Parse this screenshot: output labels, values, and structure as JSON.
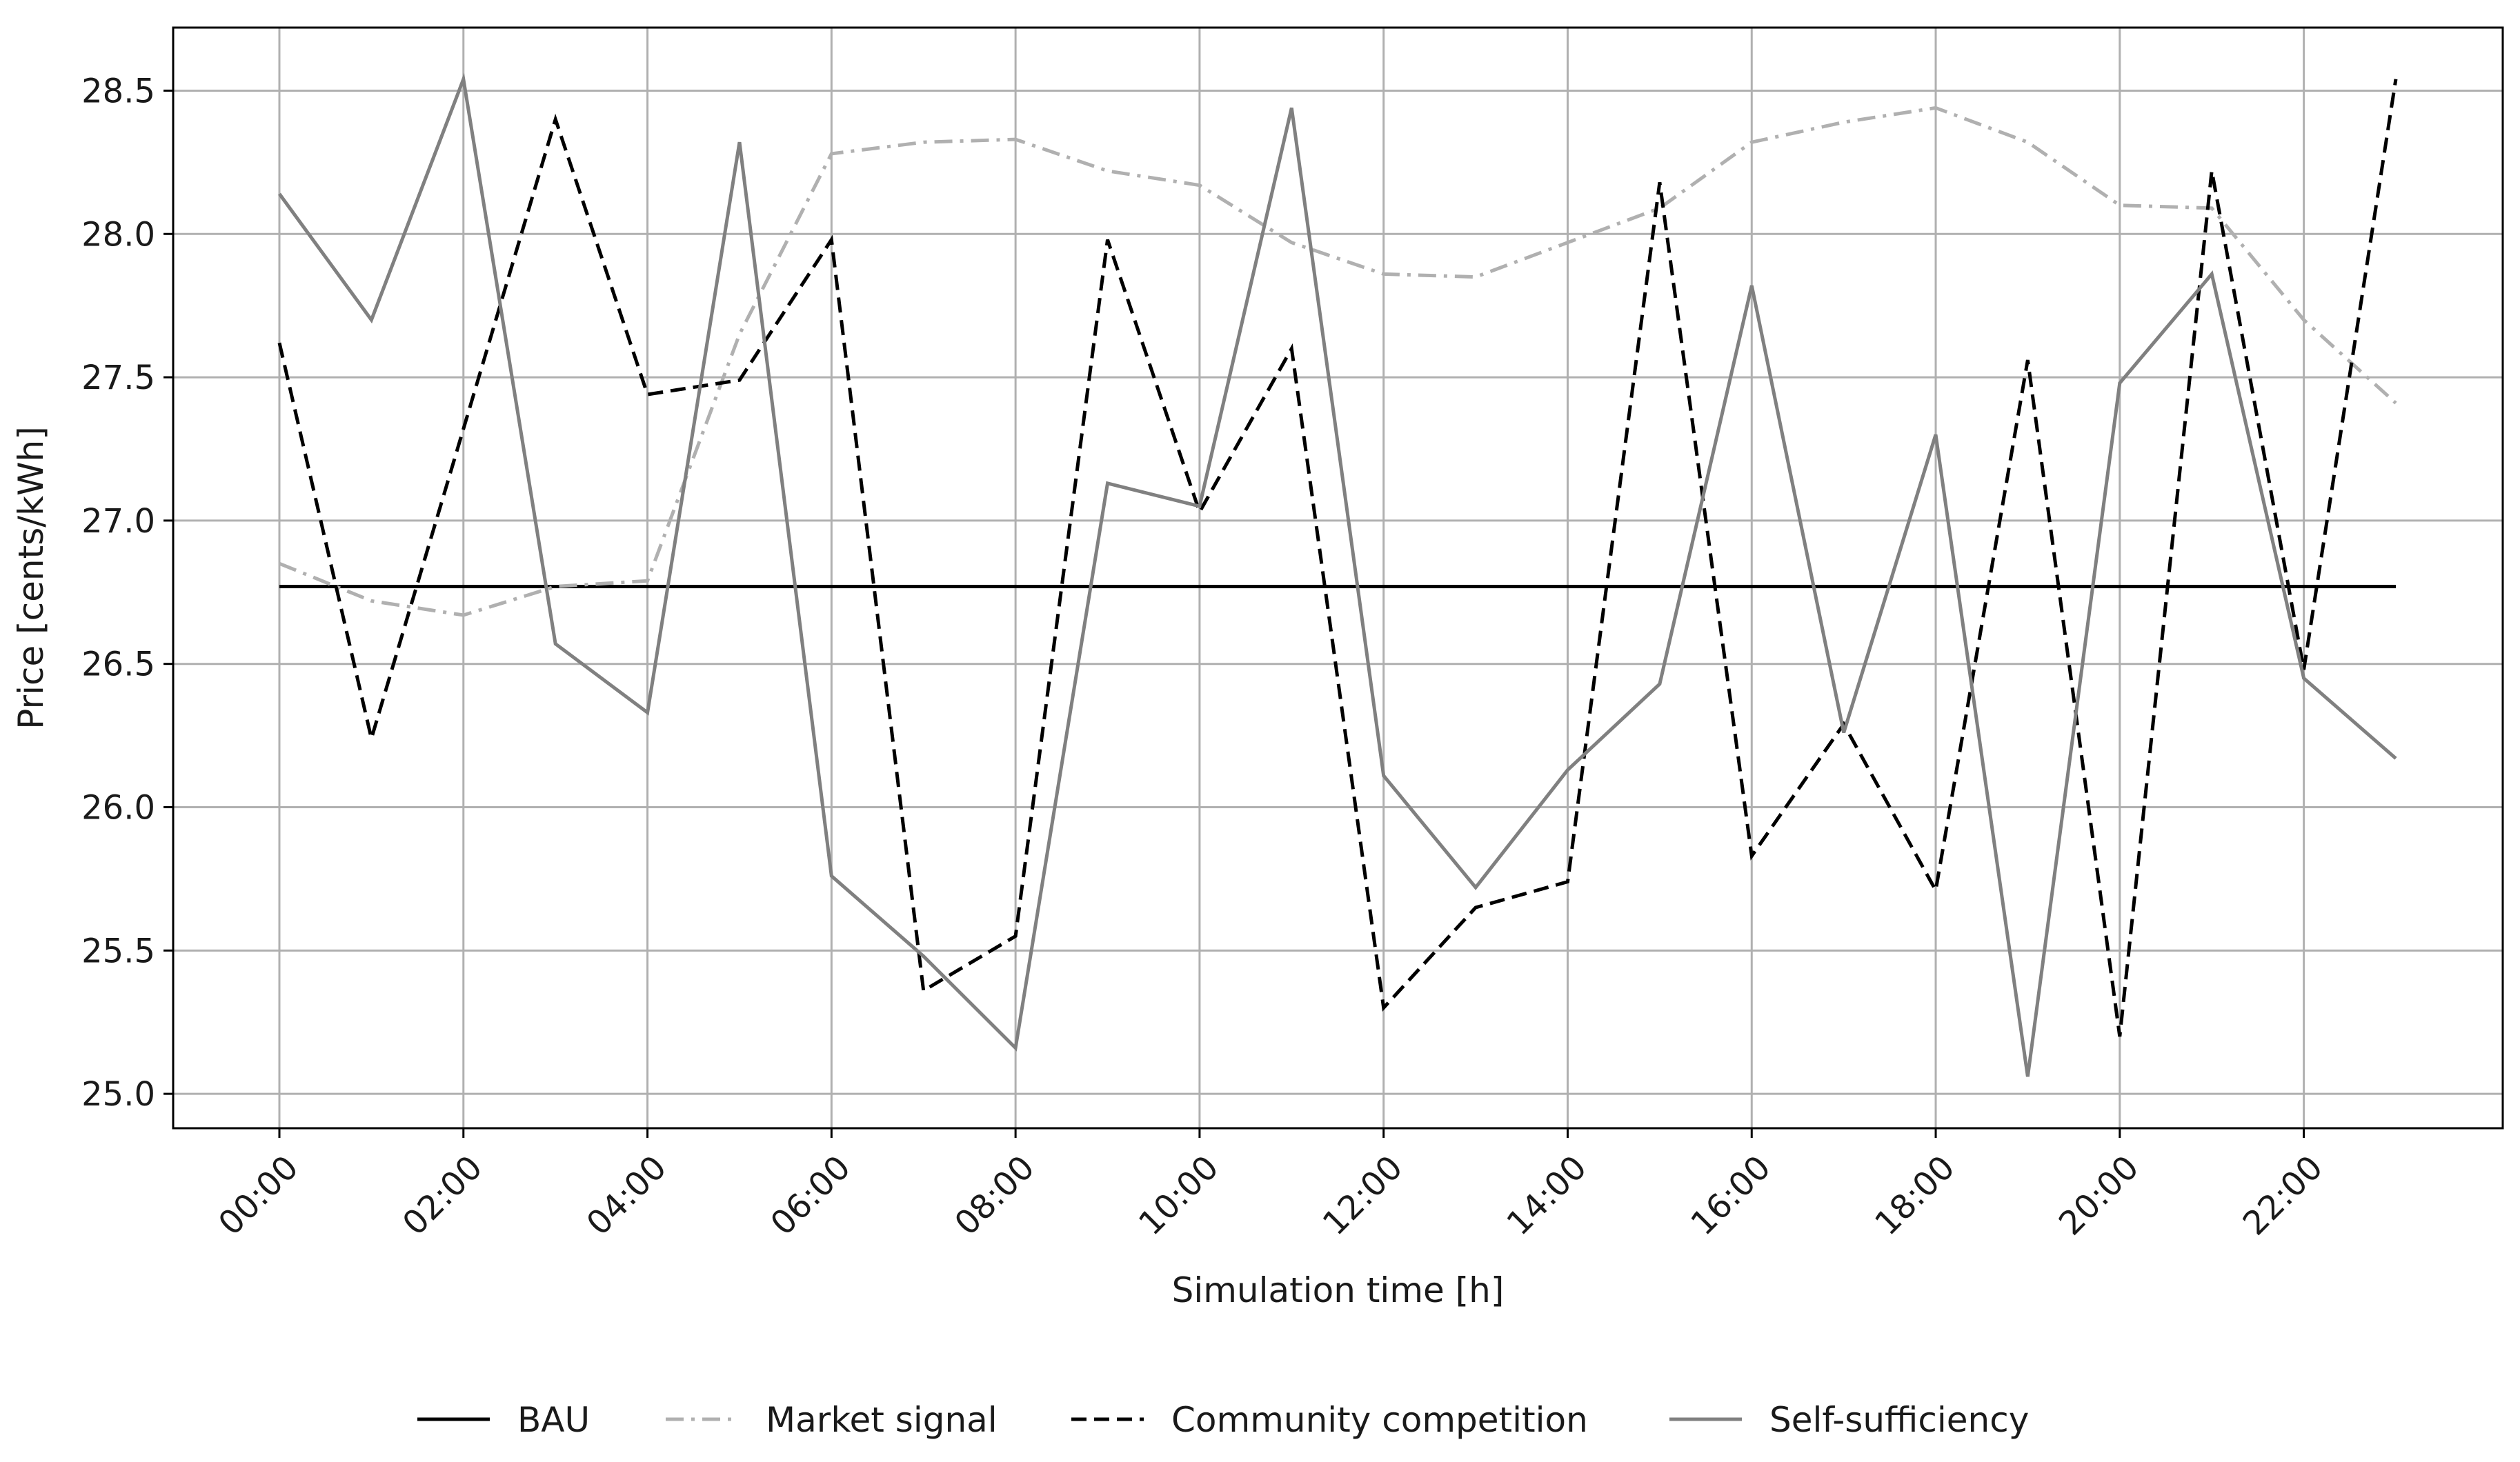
{
  "chart_data": {
    "type": "line",
    "title": "",
    "xlabel": "Simulation time [h]",
    "ylabel": "Price [cents/kWh]",
    "x": [
      "00:00",
      "01:00",
      "02:00",
      "03:00",
      "04:00",
      "05:00",
      "06:00",
      "07:00",
      "08:00",
      "09:00",
      "10:00",
      "11:00",
      "12:00",
      "13:00",
      "14:00",
      "15:00",
      "16:00",
      "17:00",
      "18:00",
      "19:00",
      "20:00",
      "21:00",
      "22:00",
      "23:00"
    ],
    "x_tick_labels": [
      "00:00",
      "02:00",
      "04:00",
      "06:00",
      "08:00",
      "10:00",
      "12:00",
      "14:00",
      "16:00",
      "18:00",
      "20:00",
      "22:00"
    ],
    "y_tick_labels": [
      "25.0",
      "25.5",
      "26.0",
      "26.5",
      "27.0",
      "27.5",
      "28.0",
      "28.5"
    ],
    "ylim": [
      24.88,
      28.72
    ],
    "grid": true,
    "legend_position": "bottom-center",
    "series": [
      {
        "name": "BAU",
        "style": "solid",
        "color": "#000000",
        "values": [
          26.77,
          26.77,
          26.77,
          26.77,
          26.77,
          26.77,
          26.77,
          26.77,
          26.77,
          26.77,
          26.77,
          26.77,
          26.77,
          26.77,
          26.77,
          26.77,
          26.77,
          26.77,
          26.77,
          26.77,
          26.77,
          26.77,
          26.77,
          26.77
        ]
      },
      {
        "name": "Market signal",
        "style": "dashdot",
        "color": "#b0b0b0",
        "values": [
          26.85,
          26.72,
          26.67,
          26.77,
          26.79,
          27.65,
          28.28,
          28.32,
          28.33,
          28.22,
          28.17,
          27.97,
          27.86,
          27.85,
          27.97,
          28.09,
          28.32,
          28.39,
          28.44,
          28.32,
          28.1,
          28.09,
          27.7,
          27.41
        ]
      },
      {
        "name": "Community competition",
        "style": "dashed",
        "color": "#000000",
        "values": [
          27.62,
          26.24,
          27.32,
          28.4,
          27.44,
          27.49,
          27.98,
          25.36,
          25.55,
          27.98,
          27.03,
          27.6,
          25.3,
          25.65,
          25.74,
          28.18,
          25.83,
          26.29,
          25.71,
          27.56,
          25.2,
          28.22,
          26.48,
          28.54
        ]
      },
      {
        "name": "Self-sufficiency",
        "style": "solid",
        "color": "#808080",
        "values": [
          28.14,
          27.7,
          28.54,
          26.57,
          26.33,
          28.32,
          25.76,
          25.48,
          25.16,
          27.13,
          27.05,
          28.44,
          26.11,
          25.72,
          26.13,
          26.43,
          27.82,
          26.26,
          27.3,
          25.06,
          27.48,
          27.86,
          26.45,
          26.17
        ]
      }
    ]
  }
}
